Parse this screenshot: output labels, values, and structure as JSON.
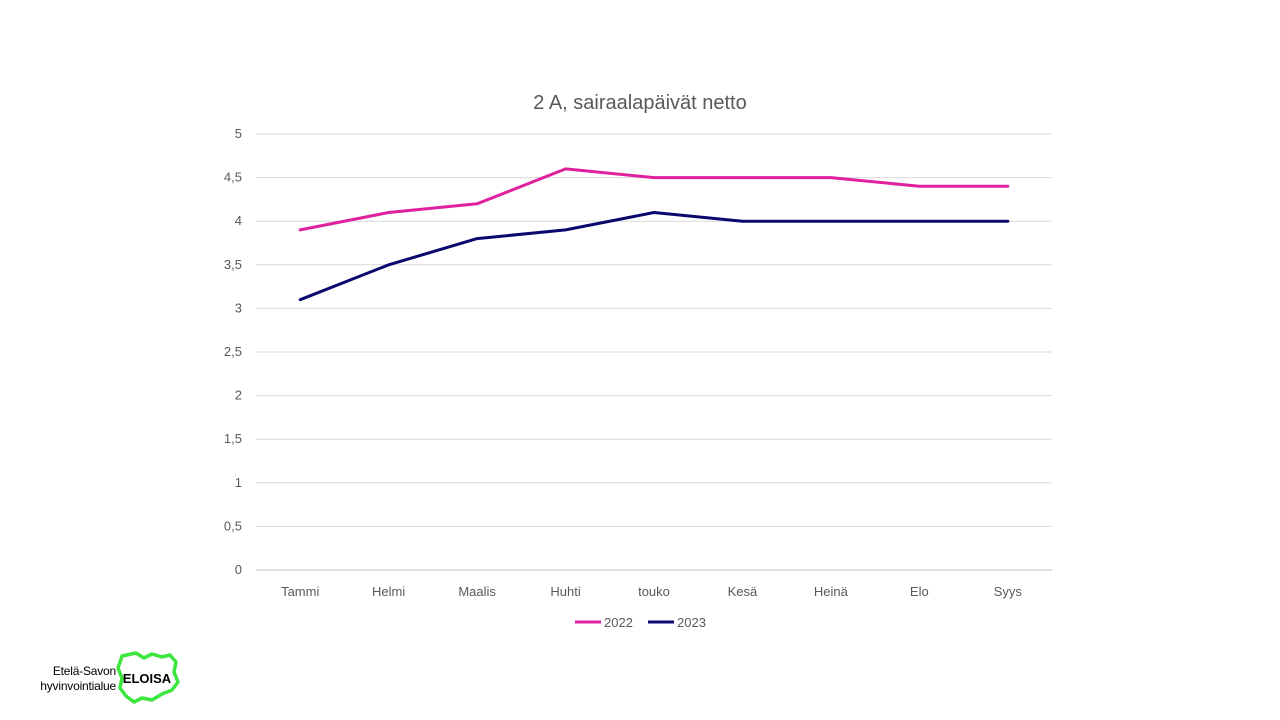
{
  "chart_data": {
    "type": "line",
    "title": "2 A, sairaalapäivät netto",
    "categories": [
      "Tammi",
      "Helmi",
      "Maalis",
      "Huhti",
      "touko",
      "Kesä",
      "Heinä",
      "Elo",
      "Syys"
    ],
    "series": [
      {
        "name": "2022",
        "color": "#E0219E",
        "values": [
          3.9,
          4.1,
          4.2,
          4.6,
          4.5,
          4.5,
          4.5,
          4.4,
          4.4
        ]
      },
      {
        "name": "2023",
        "color": "#0A0A6E",
        "values": [
          3.1,
          3.5,
          3.8,
          3.9,
          4.1,
          4.0,
          4.0,
          4.0,
          4.0
        ]
      }
    ],
    "ylim": [
      0,
      5
    ],
    "yticks": [
      "0",
      "0,5",
      "1",
      "1,5",
      "2",
      "2,5",
      "3",
      "3,5",
      "4",
      "4,5",
      "5"
    ],
    "grid": true,
    "legend": "bottom"
  },
  "logo": {
    "line1": "Etelä-Savon",
    "line2": "hyvinvointialue",
    "wordmark": "ELOISA",
    "color": "#3CE63C"
  }
}
